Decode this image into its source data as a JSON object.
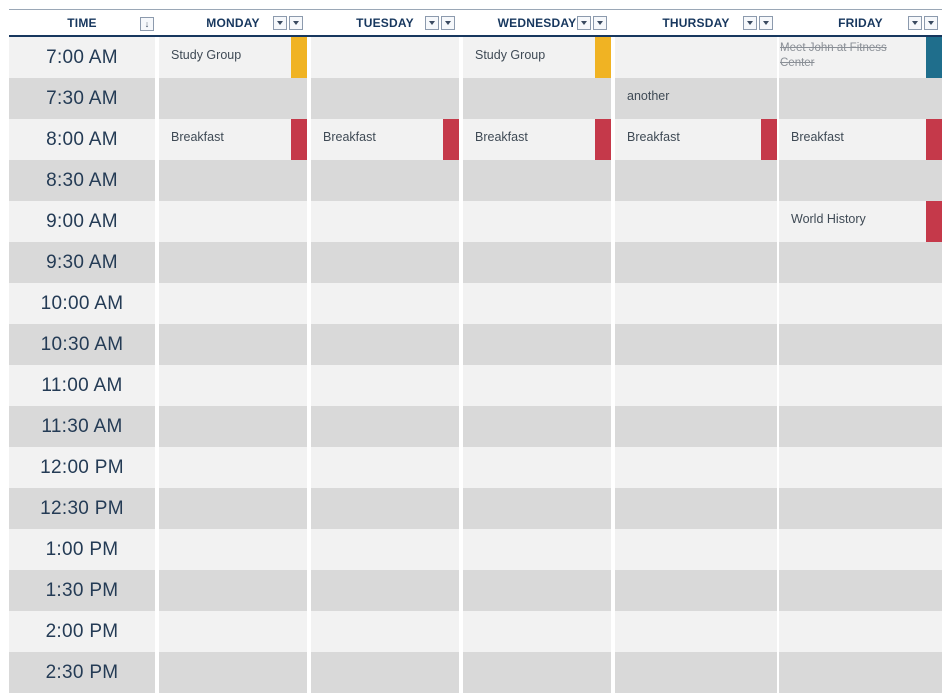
{
  "header": {
    "columns": [
      "TIME",
      "MONDAY",
      "TUESDAY",
      "WEDNESDAY",
      "THURSDAY",
      "FRIDAY"
    ]
  },
  "colors": {
    "accent_dark": "#17375e",
    "row_light": "#f2f2f2",
    "row_dark": "#d9d9d9",
    "tag_yellow": "#f0b323",
    "tag_red": "#c5394a",
    "tag_teal": "#1f6e8c"
  },
  "rows": [
    {
      "time": "7:00 AM",
      "events": [
        {
          "day": 1,
          "text": "Study Group",
          "tag": "tag_yellow"
        },
        {
          "day": 3,
          "text": "Study Group",
          "tag": "tag_yellow"
        },
        {
          "day": 5,
          "text": "Meet John at Fitness Center",
          "tag": "tag_teal",
          "strike": true
        }
      ]
    },
    {
      "time": "7:30 AM",
      "events": [
        {
          "day": 4,
          "text": "another"
        }
      ]
    },
    {
      "time": "8:00 AM",
      "events": [
        {
          "day": 1,
          "text": "Breakfast",
          "tag": "tag_red"
        },
        {
          "day": 2,
          "text": "Breakfast",
          "tag": "tag_red"
        },
        {
          "day": 3,
          "text": "Breakfast",
          "tag": "tag_red"
        },
        {
          "day": 4,
          "text": "Breakfast",
          "tag": "tag_red"
        },
        {
          "day": 5,
          "text": "Breakfast",
          "tag": "tag_red"
        }
      ]
    },
    {
      "time": "8:30 AM",
      "events": []
    },
    {
      "time": "9:00 AM",
      "events": [
        {
          "day": 5,
          "text": "World History",
          "tag": "tag_red"
        }
      ]
    },
    {
      "time": "9:30 AM",
      "events": []
    },
    {
      "time": "10:00 AM",
      "events": []
    },
    {
      "time": "10:30 AM",
      "events": []
    },
    {
      "time": "11:00 AM",
      "events": []
    },
    {
      "time": "11:30 AM",
      "events": []
    },
    {
      "time": "12:00 PM",
      "events": []
    },
    {
      "time": "12:30 PM",
      "events": []
    },
    {
      "time": "1:00 PM",
      "events": []
    },
    {
      "time": "1:30 PM",
      "events": []
    },
    {
      "time": "2:00 PM",
      "events": []
    },
    {
      "time": "2:30 PM",
      "events": []
    }
  ]
}
